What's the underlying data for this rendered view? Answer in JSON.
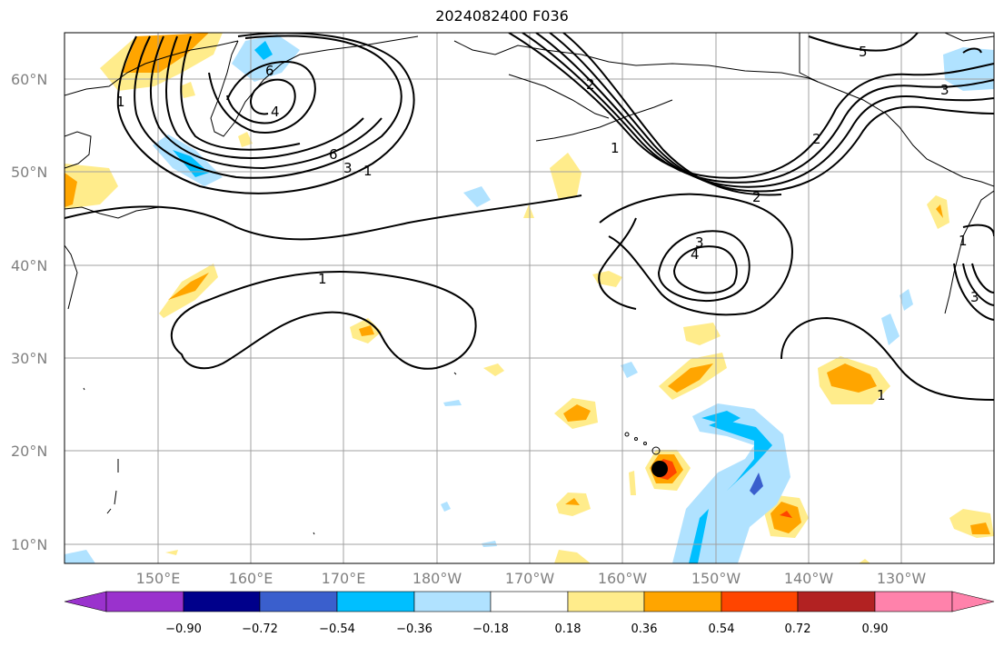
{
  "title": "2024082400 F036",
  "map": {
    "lat_labels": [
      "60°N",
      "50°N",
      "40°N",
      "30°N",
      "20°N",
      "10°N"
    ],
    "lon_labels": [
      "150°E",
      "160°E",
      "170°E",
      "180°W",
      "170°W",
      "160°W",
      "150°W",
      "140°W",
      "130°W"
    ],
    "contour_labels": [
      "1",
      "1",
      "1",
      "1",
      "1",
      "1",
      "2",
      "2",
      "2",
      "3",
      "3",
      "3",
      "3",
      "4",
      "4",
      "5",
      "6",
      "6"
    ],
    "storm_marker": {
      "lat": 18,
      "lon": -156
    }
  },
  "colorbar": {
    "ticks": [
      "−0.90",
      "−0.72",
      "−0.54",
      "−0.36",
      "−0.18",
      "0.18",
      "0.36",
      "0.54",
      "0.72",
      "0.90"
    ],
    "colors": {
      "neg_extend": "#9a32cd",
      "neg_090": "#00008b",
      "neg_072": "#3a5fcd",
      "neg_054": "#00bfff",
      "neg_036": "#b0e2ff",
      "neutral": "#ffffff",
      "pos_018": "#ffec8b",
      "pos_036": "#ffa500",
      "pos_054": "#ff4500",
      "pos_072": "#b22222",
      "pos_extend": "#ff82ab"
    }
  }
}
